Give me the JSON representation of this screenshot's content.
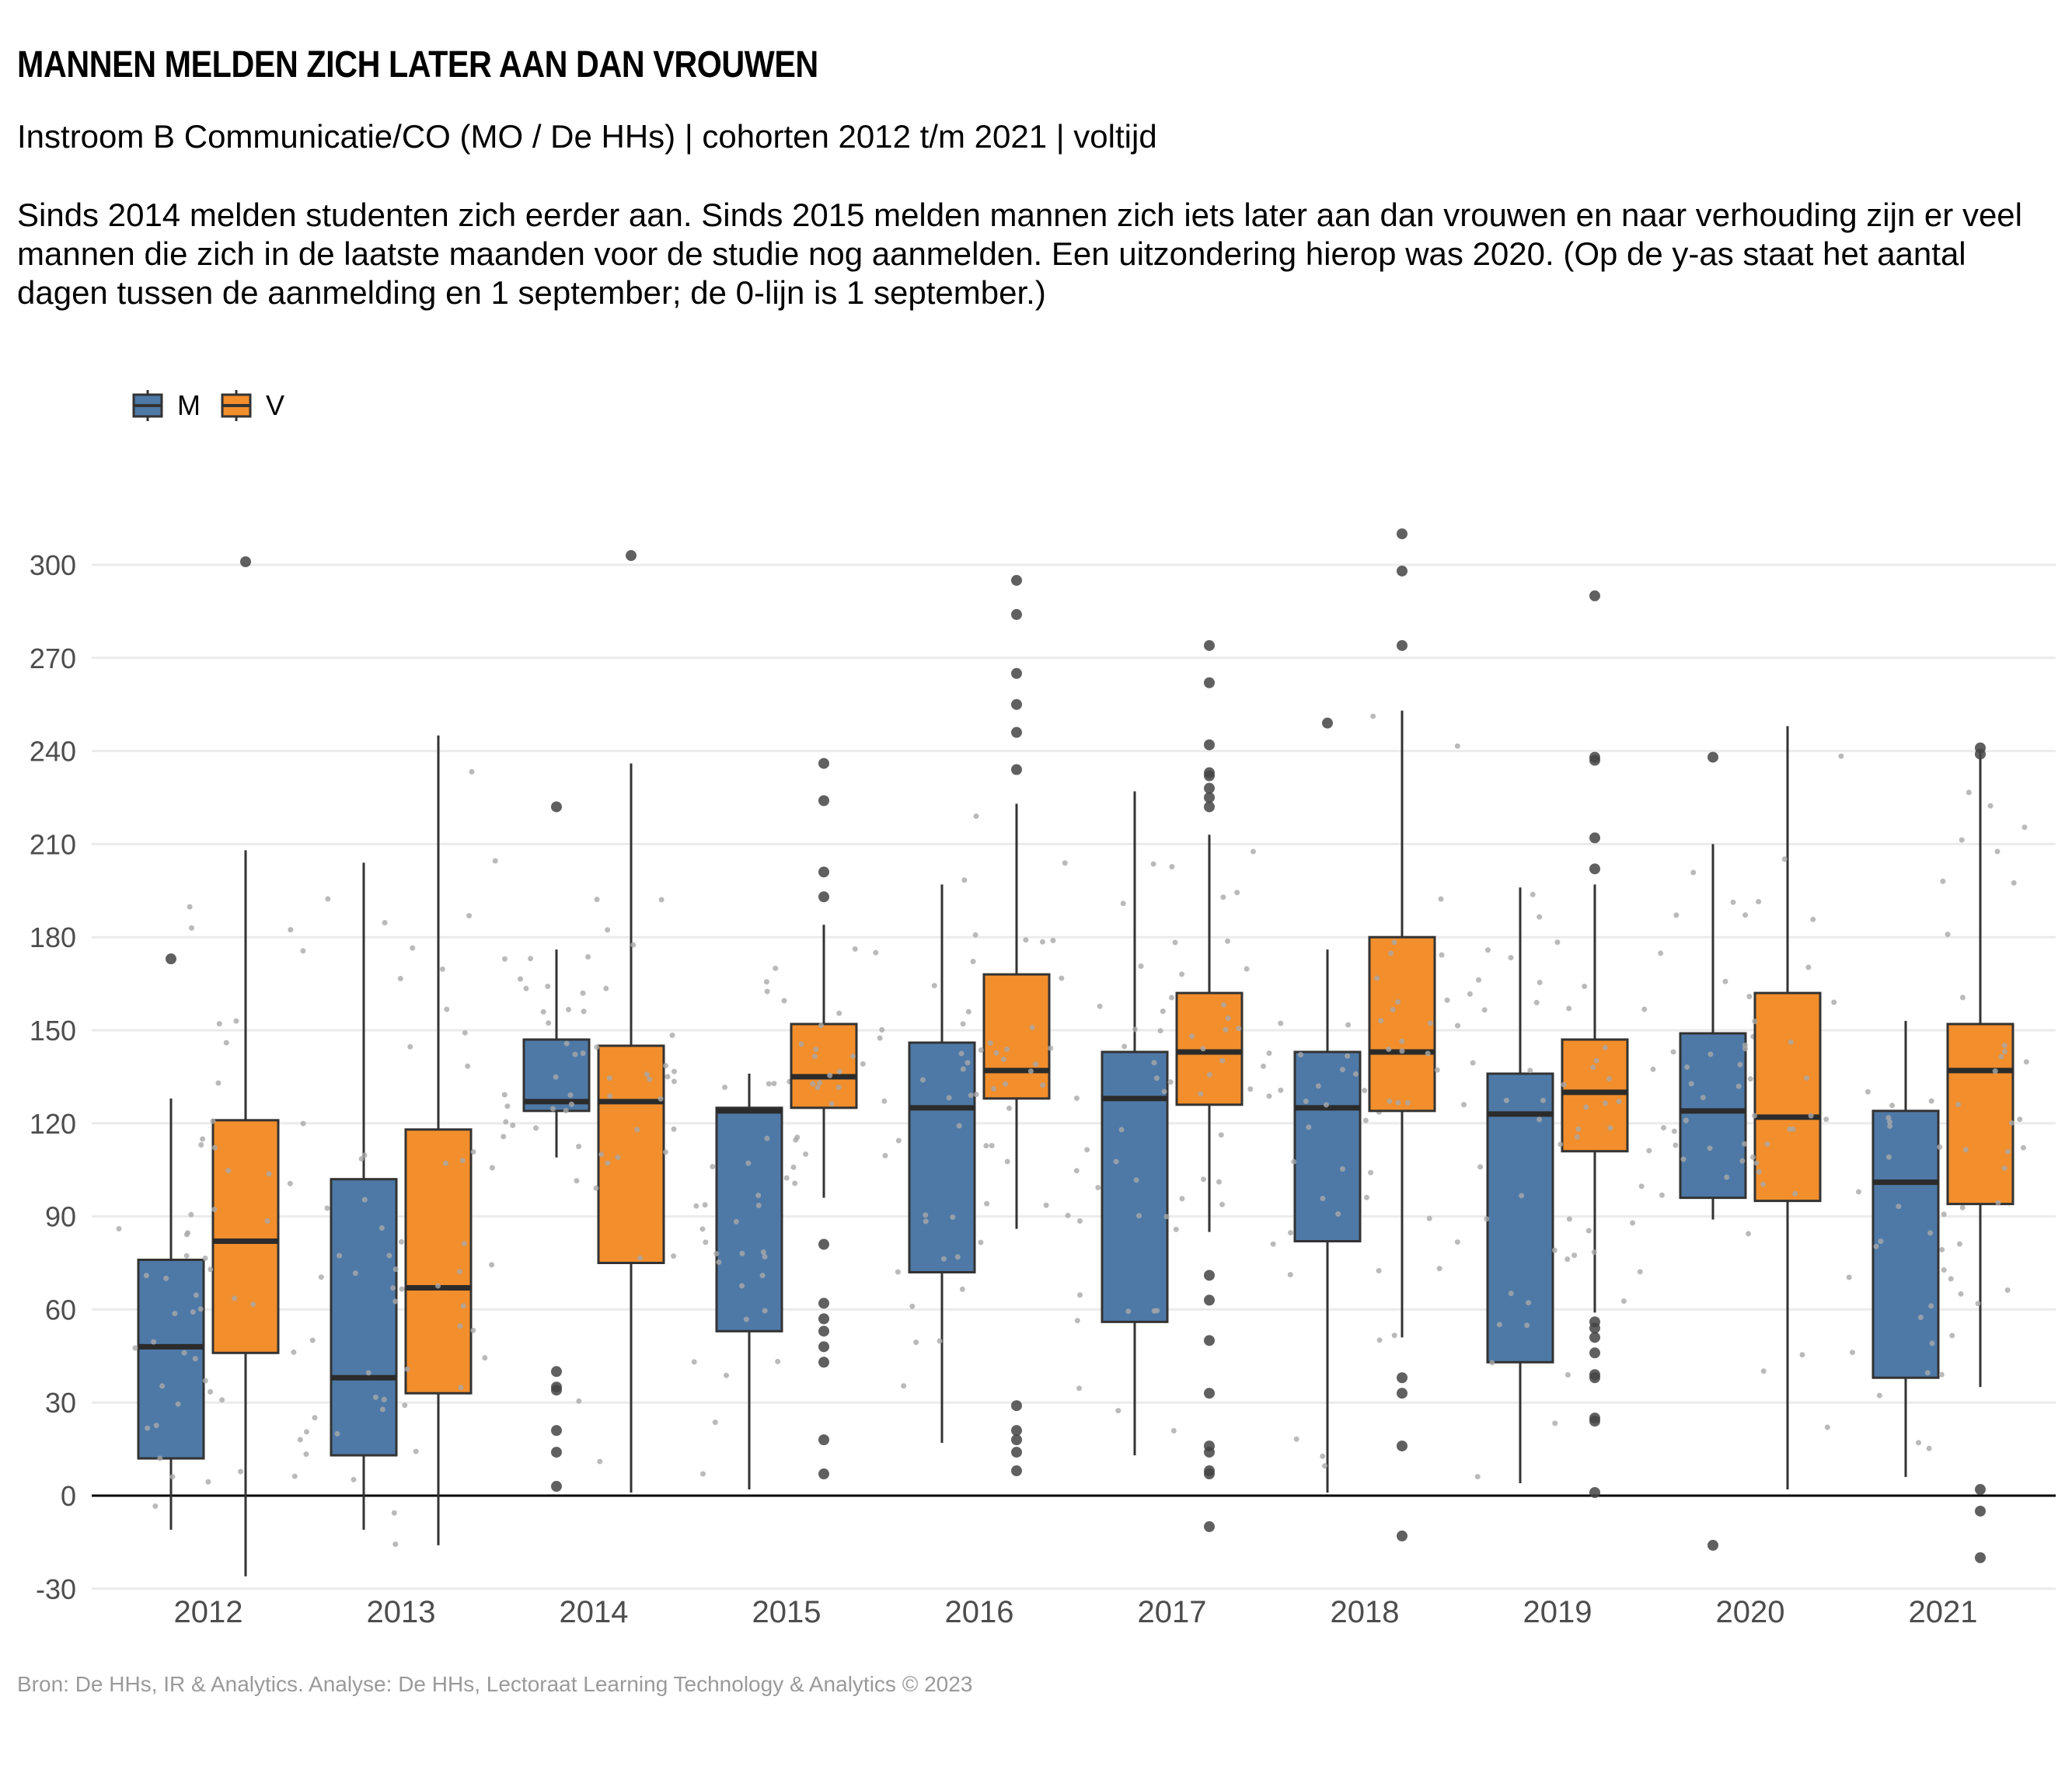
{
  "header": {
    "title": "MANNEN MELDEN ZICH LATER AAN DAN VROUWEN",
    "subtitle": "Instroom B Communicatie/CO (MO / De HHs) | cohorten 2012 t/m 2021 | voltijd",
    "description": "Sinds 2014 melden studenten zich eerder aan. Sinds 2015 melden mannen zich iets later aan dan vrouwen en naar verhouding zijn er veel mannen die zich in de laatste maanden voor de studie nog aanmelden. Een uitzondering hierop was 2020. (Op de y-as staat het aantal dagen tussen de aanmelding en 1 september; de 0-lijn is 1 september.)"
  },
  "footer": {
    "caption": "Bron: De HHs, IR & Analytics. Analyse: De HHs, Lectoraat Learning Technology & Analytics © 2023"
  },
  "colors": {
    "M": "#4e79a7",
    "V": "#f28e2b",
    "grid": "#ebebeb",
    "outlier": "#444444",
    "jitter": "#a9a9a9"
  },
  "chart_data": {
    "type": "boxplot",
    "categories": [
      "2012",
      "2013",
      "2014",
      "2015",
      "2016",
      "2017",
      "2018",
      "2019",
      "2020",
      "2021"
    ],
    "ylim": [
      -30,
      310
    ],
    "yticks": [
      -30,
      0,
      30,
      60,
      90,
      120,
      150,
      180,
      210,
      240,
      270,
      300
    ],
    "grid": true,
    "legend_position": "top-left",
    "series": [
      {
        "name": "M",
        "boxes": [
          {
            "lower_whisker": -11,
            "q1": 12,
            "median": 48,
            "q3": 76,
            "upper_whisker": 128,
            "outliers": [
              173
            ]
          },
          {
            "lower_whisker": -11,
            "q1": 13,
            "median": 38,
            "q3": 102,
            "upper_whisker": 204,
            "outliers": []
          },
          {
            "lower_whisker": 109,
            "q1": 124,
            "median": 127,
            "q3": 147,
            "upper_whisker": 176,
            "outliers": [
              222,
              40,
              35,
              34,
              21,
              14,
              3
            ]
          },
          {
            "lower_whisker": 2,
            "q1": 53,
            "median": 124,
            "q3": 125,
            "upper_whisker": 136,
            "outliers": []
          },
          {
            "lower_whisker": 17,
            "q1": 72,
            "median": 125,
            "q3": 146,
            "upper_whisker": 197,
            "outliers": []
          },
          {
            "lower_whisker": 13,
            "q1": 56,
            "median": 128,
            "q3": 143,
            "upper_whisker": 227,
            "outliers": []
          },
          {
            "lower_whisker": 1,
            "q1": 82,
            "median": 125,
            "q3": 143,
            "upper_whisker": 176,
            "outliers": [
              249
            ]
          },
          {
            "lower_whisker": 4,
            "q1": 43,
            "median": 123,
            "q3": 136,
            "upper_whisker": 196,
            "outliers": []
          },
          {
            "lower_whisker": 89,
            "q1": 96,
            "median": 124,
            "q3": 149,
            "upper_whisker": 210,
            "outliers": [
              238,
              -16
            ]
          },
          {
            "lower_whisker": 6,
            "q1": 38,
            "median": 101,
            "q3": 124,
            "upper_whisker": 153,
            "outliers": []
          }
        ]
      },
      {
        "name": "V",
        "boxes": [
          {
            "lower_whisker": -26,
            "q1": 46,
            "median": 82,
            "q3": 121,
            "upper_whisker": 208,
            "outliers": [
              301
            ]
          },
          {
            "lower_whisker": -16,
            "q1": 33,
            "median": 67,
            "q3": 118,
            "upper_whisker": 245,
            "outliers": []
          },
          {
            "lower_whisker": 1,
            "q1": 75,
            "median": 127,
            "q3": 145,
            "upper_whisker": 236,
            "outliers": [
              303
            ]
          },
          {
            "lower_whisker": 96,
            "q1": 125,
            "median": 135,
            "q3": 152,
            "upper_whisker": 184,
            "outliers": [
              236,
              224,
              201,
              193,
              81,
              62,
              57,
              53,
              48,
              43,
              18,
              7
            ]
          },
          {
            "lower_whisker": 86,
            "q1": 128,
            "median": 137,
            "q3": 168,
            "upper_whisker": 223,
            "outliers": [
              295,
              284,
              265,
              255,
              246,
              234,
              29,
              21,
              18,
              14,
              8
            ]
          },
          {
            "lower_whisker": 85,
            "q1": 126,
            "median": 143,
            "q3": 162,
            "upper_whisker": 213,
            "outliers": [
              274,
              262,
              242,
              233,
              232,
              228,
              225,
              222,
              71,
              63,
              50,
              33,
              16,
              14,
              8,
              7,
              -10
            ]
          },
          {
            "lower_whisker": 51,
            "q1": 124,
            "median": 143,
            "q3": 180,
            "upper_whisker": 253,
            "outliers": [
              310,
              298,
              274,
              38,
              33,
              16,
              -13
            ]
          },
          {
            "lower_whisker": 59,
            "q1": 111,
            "median": 130,
            "q3": 147,
            "upper_whisker": 197,
            "outliers": [
              290,
              238,
              237,
              212,
              202,
              56,
              54,
              51,
              46,
              39,
              38,
              25,
              24,
              1
            ]
          },
          {
            "lower_whisker": 2,
            "q1": 95,
            "median": 122,
            "q3": 162,
            "upper_whisker": 248,
            "outliers": []
          },
          {
            "lower_whisker": 35,
            "q1": 94,
            "median": 137,
            "q3": 152,
            "upper_whisker": 240,
            "outliers": [
              241,
              239,
              2,
              -5,
              -20
            ]
          }
        ]
      }
    ]
  }
}
